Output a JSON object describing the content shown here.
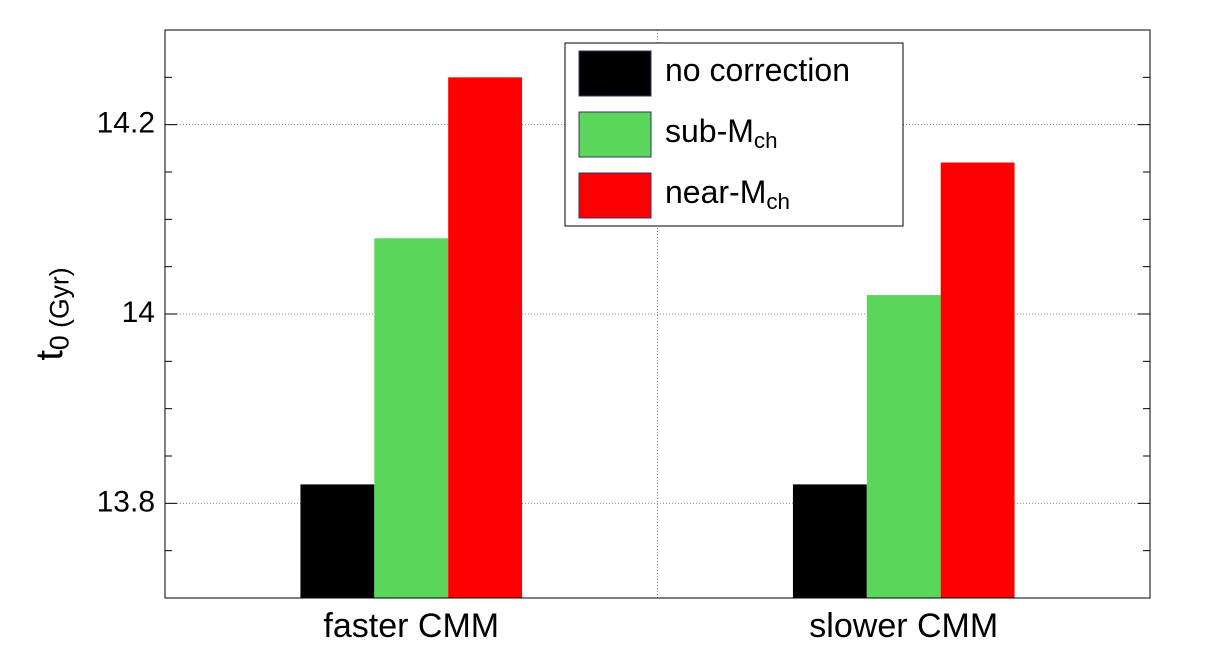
{
  "chart_data": {
    "type": "bar",
    "ylabel": "t_0 (Gyr)",
    "categories": [
      "faster CMM",
      "slower CMM"
    ],
    "series": [
      {
        "name": "no correction",
        "color": "#000000",
        "values": [
          13.82,
          13.82
        ]
      },
      {
        "name": "sub-M_ch",
        "color": "#5ad65a",
        "values": [
          14.08,
          14.02
        ]
      },
      {
        "name": "near-M_ch",
        "color": "#ff0000",
        "values": [
          14.25,
          14.16
        ]
      }
    ],
    "ylim": [
      13.7,
      14.3
    ],
    "yticks": [
      13.8,
      14.0,
      14.2
    ],
    "minor_yticks": [
      13.75,
      13.85,
      13.9,
      13.95,
      14.05,
      14.1,
      14.15,
      14.25
    ],
    "grid": true,
    "legend": "top"
  }
}
